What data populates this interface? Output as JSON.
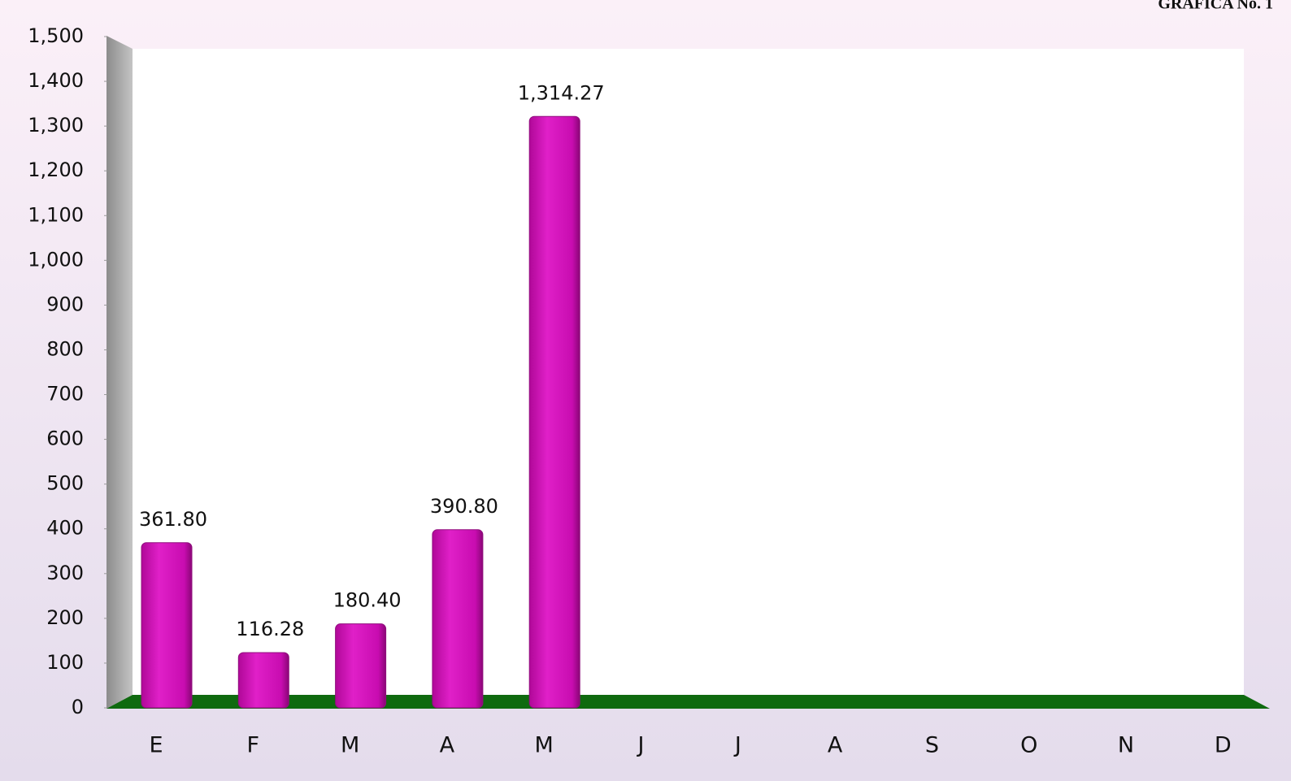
{
  "chart_data": {
    "type": "bar",
    "title": "GRAFICA No. 1",
    "categories": [
      "E",
      "F",
      "M",
      "A",
      "M",
      "J",
      "J",
      "A",
      "S",
      "O",
      "N",
      "D"
    ],
    "values": [
      361.8,
      116.28,
      180.4,
      390.8,
      1314.27,
      null,
      null,
      null,
      null,
      null,
      null,
      null
    ],
    "value_labels": [
      "361.80",
      "116.28",
      "180.40",
      "390.80",
      "1,314.27",
      null,
      null,
      null,
      null,
      null,
      null,
      null
    ],
    "color": "#d010b8",
    "ylim": [
      0,
      1500
    ],
    "yticks": [
      0,
      100,
      200,
      300,
      400,
      500,
      600,
      700,
      800,
      900,
      {
        "value": 1000,
        "label": "1,000"
      },
      {
        "value": 1100,
        "label": "1,100"
      },
      {
        "value": 1200,
        "label": "1,200"
      },
      {
        "value": 1300,
        "label": "1,300"
      },
      {
        "value": 1400,
        "label": "1,400"
      },
      {
        "value": 1500,
        "label": "1,500"
      }
    ]
  }
}
